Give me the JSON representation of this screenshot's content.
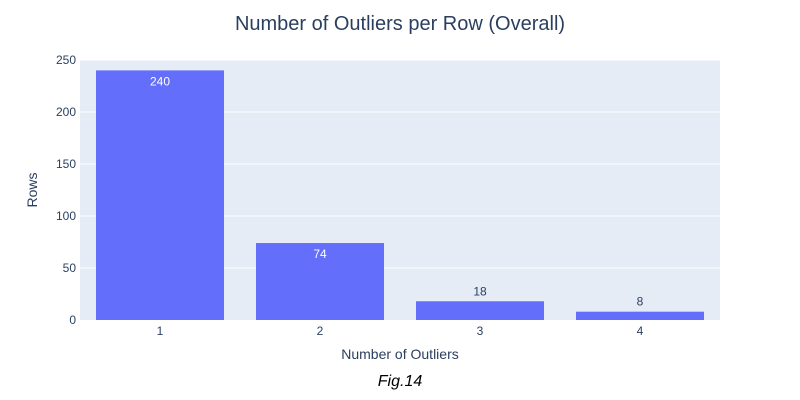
{
  "chart_data": {
    "type": "bar",
    "title": "Number of Outliers per Row (Overall)",
    "xlabel": "Number of Outliers",
    "ylabel": "Rows",
    "categories": [
      "1",
      "2",
      "3",
      "4"
    ],
    "values": [
      240,
      74,
      18,
      8
    ],
    "ylim": [
      0,
      250
    ],
    "yticks": [
      0,
      50,
      100,
      150,
      200,
      250
    ],
    "grid": true,
    "bar_color": "#636efa",
    "plot_bg": "#e5ecf6"
  },
  "caption": "Fig.14"
}
